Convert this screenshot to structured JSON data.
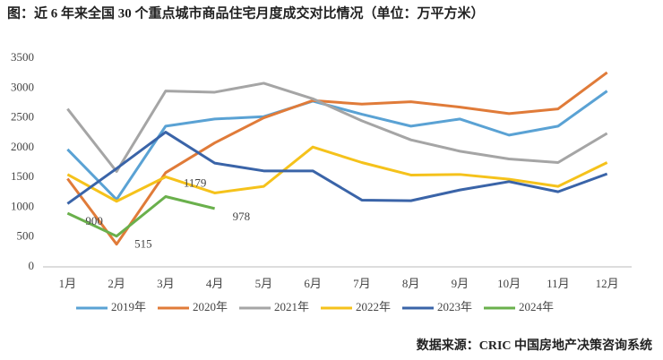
{
  "chart_data": {
    "type": "line",
    "title": "图：近 6 年来全国 30 个重点城市商品住宅月度成交对比情况（单位：万平方米）",
    "source": "数据来源：CRIC 中国房地产决策咨询系统",
    "categories": [
      "1月",
      "2月",
      "3月",
      "4月",
      "5月",
      "6月",
      "7月",
      "8月",
      "9月",
      "10月",
      "11月",
      "12月"
    ],
    "series": [
      {
        "name": "2019年",
        "color": "#5aa2d4",
        "values": [
          1970,
          1130,
          2360,
          2480,
          2520,
          2780,
          2560,
          2360,
          2480,
          2210,
          2360,
          2950
        ]
      },
      {
        "name": "2020年",
        "color": "#e07b39",
        "values": [
          1480,
          380,
          1580,
          2080,
          2500,
          2790,
          2730,
          2770,
          2680,
          2570,
          2650,
          3260
        ]
      },
      {
        "name": "2021年",
        "color": "#a5a5a5",
        "values": [
          2650,
          1600,
          2950,
          2930,
          3080,
          2820,
          2450,
          2130,
          1940,
          1810,
          1750,
          2240
        ]
      },
      {
        "name": "2022年",
        "color": "#f5c21b",
        "values": [
          1550,
          1100,
          1510,
          1240,
          1350,
          2010,
          1750,
          1540,
          1550,
          1470,
          1350,
          1750
        ]
      },
      {
        "name": "2023年",
        "color": "#3a64a8",
        "values": [
          1060,
          1650,
          2260,
          1740,
          1610,
          1610,
          1120,
          1110,
          1290,
          1430,
          1260,
          1560
        ]
      },
      {
        "name": "2024年",
        "color": "#6ab04c",
        "values": [
          900,
          515,
          1179,
          978,
          null,
          null,
          null,
          null,
          null,
          null,
          null,
          null
        ],
        "data_labels": true
      }
    ],
    "ylim": [
      0,
      3500
    ],
    "yticks": [
      0,
      500,
      1000,
      1500,
      2000,
      2500,
      3000,
      3500
    ],
    "grid": false
  }
}
